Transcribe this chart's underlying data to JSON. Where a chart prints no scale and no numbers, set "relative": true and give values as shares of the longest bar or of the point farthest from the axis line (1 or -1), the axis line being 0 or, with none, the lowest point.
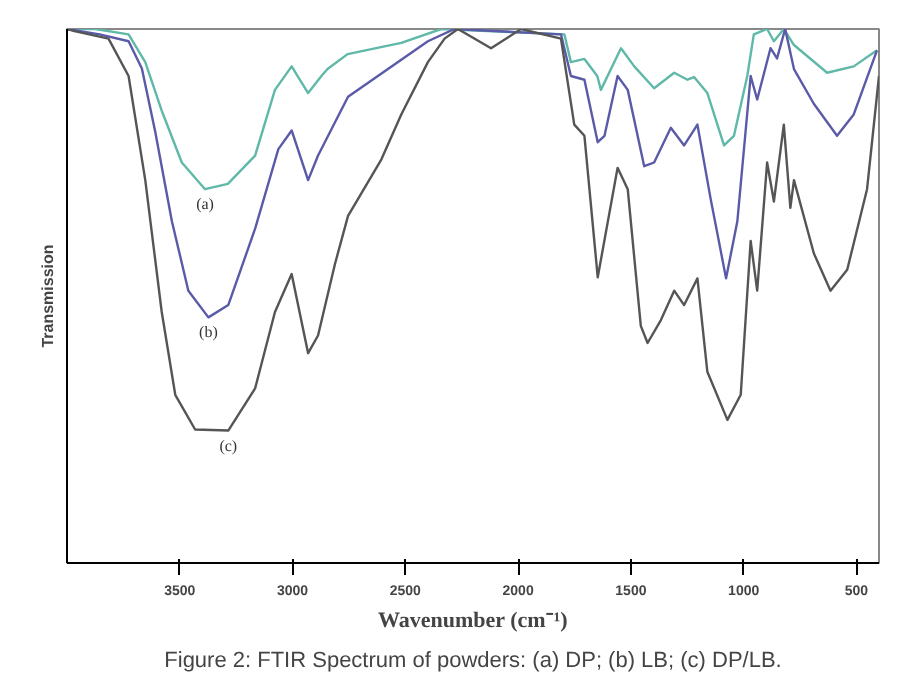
{
  "chart_data": {
    "type": "line",
    "relative": true,
    "ylabel": "Transmission",
    "xlabel": "Wavenumber (cm⁻¹)",
    "xlim": [
      4000,
      400
    ],
    "xticks": [
      3500,
      3000,
      2500,
      2000,
      1500,
      1000,
      500
    ],
    "grid": false,
    "marker": "none",
    "line_style": "solid",
    "series": [
      {
        "color": "#5fb8a8",
        "x": [
          4000,
          3874,
          3727,
          3653,
          3580,
          3491,
          3388,
          3287,
          3166,
          3078,
          3004,
          2931,
          2872,
          2845,
          2756,
          2518,
          2341,
          1795,
          1766,
          1706,
          1649,
          1633,
          1544,
          1485,
          1397,
          1308,
          1249,
          1220,
          1161,
          1087,
          1043,
          984,
          955,
          896,
          866,
          822,
          777,
          630,
          512,
          409
        ],
        "values": [
          1.0,
          1.0,
          0.99,
          0.938,
          0.847,
          0.75,
          0.7,
          0.71,
          0.763,
          0.886,
          0.93,
          0.88,
          0.912,
          0.925,
          0.953,
          0.974,
          1.0,
          0.99,
          0.938,
          0.944,
          0.912,
          0.886,
          0.964,
          0.93,
          0.889,
          0.918,
          0.905,
          0.91,
          0.88,
          0.782,
          0.8,
          0.912,
          0.99,
          1.0,
          0.977,
          1.0,
          0.97,
          0.918,
          0.93,
          0.96
        ]
      },
      {
        "color": "#5a5aa8",
        "x": [
          4000,
          3855,
          3727,
          3668,
          3609,
          3535,
          3462,
          3373,
          3285,
          3166,
          3063,
          3004,
          2931,
          2887,
          2754,
          2577,
          2400,
          2282,
          1810,
          1766,
          1706,
          1647,
          1617,
          1559,
          1514,
          1441,
          1397,
          1323,
          1264,
          1205,
          1146,
          1078,
          1028,
          969,
          940,
          881,
          852,
          816,
          777,
          689,
          586,
          512,
          409
        ],
        "values": [
          1.0,
          0.99,
          0.977,
          0.926,
          0.808,
          0.64,
          0.51,
          0.46,
          0.483,
          0.626,
          0.775,
          0.81,
          0.717,
          0.763,
          0.873,
          0.925,
          0.977,
          1.0,
          0.99,
          0.912,
          0.905,
          0.788,
          0.8,
          0.912,
          0.886,
          0.743,
          0.75,
          0.815,
          0.782,
          0.821,
          0.681,
          0.533,
          0.64,
          0.912,
          0.868,
          0.964,
          0.945,
          1.0,
          0.925,
          0.86,
          0.8,
          0.84,
          0.96
        ]
      },
      {
        "color": "#555555",
        "x": [
          4000,
          3967,
          3816,
          3727,
          3653,
          3580,
          3520,
          3432,
          3285,
          3166,
          3078,
          3004,
          2931,
          2887,
          2812,
          2754,
          2606,
          2518,
          2400,
          2326,
          2267,
          2120,
          1987,
          1810,
          1751,
          1706,
          1647,
          1559,
          1514,
          1456,
          1426,
          1367,
          1308,
          1264,
          1205,
          1161,
          1072,
          1013,
          969,
          940,
          896,
          866,
          822,
          793,
          777,
          689,
          615,
          541,
          453,
          400
        ],
        "values": [
          1.0,
          0.996,
          0.982,
          0.912,
          0.717,
          0.47,
          0.315,
          0.25,
          0.248,
          0.327,
          0.47,
          0.541,
          0.393,
          0.426,
          0.56,
          0.65,
          0.756,
          0.84,
          0.938,
          0.982,
          1.0,
          0.964,
          1.0,
          0.982,
          0.821,
          0.8,
          0.535,
          0.74,
          0.7,
          0.444,
          0.412,
          0.455,
          0.51,
          0.483,
          0.533,
          0.358,
          0.268,
          0.315,
          0.603,
          0.51,
          0.75,
          0.677,
          0.821,
          0.665,
          0.717,
          0.58,
          0.51,
          0.549,
          0.7,
          0.912
        ]
      }
    ],
    "annotations": [
      {
        "text": "(a)",
        "x": 3388,
        "y": 0.7
      },
      {
        "text": "(b)",
        "x": 3373,
        "y": 0.46
      },
      {
        "text": "(c)",
        "x": 3285,
        "y": 0.248
      },
      "Figure 2: FTIR Spectrum of powders: (a) DP; (b) LB; (c) DP/LB."
    ]
  }
}
